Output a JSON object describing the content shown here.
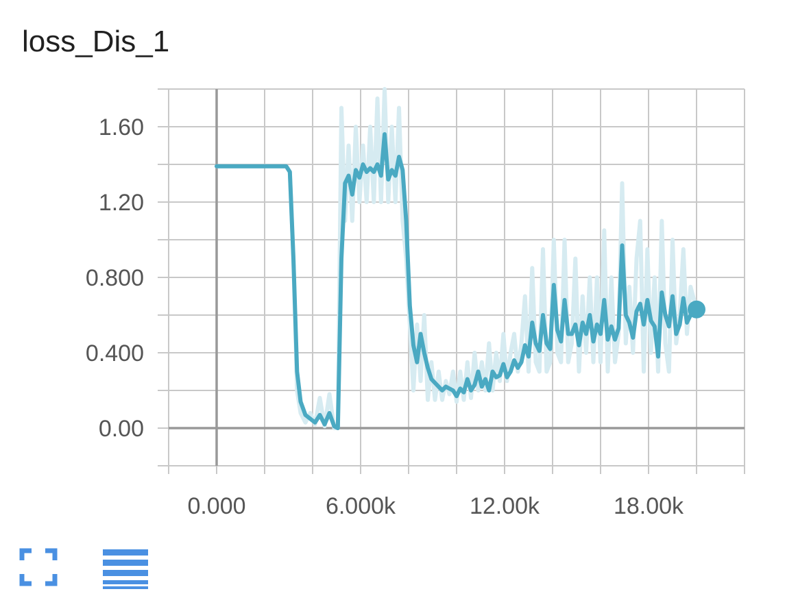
{
  "title": "loss_Dis_1",
  "toolbar": {
    "fullscreen_icon": "expand-fullscreen-icon",
    "data_icon": "menu-lines-icon",
    "accent_color": "#4a90e2"
  },
  "chart_data": {
    "type": "line",
    "title": "loss_Dis_1",
    "xlabel": "",
    "ylabel": "",
    "xlim": [
      -2000,
      22000
    ],
    "ylim": [
      -0.2,
      1.8
    ],
    "x_ticks": [
      0,
      6000,
      12000,
      18000
    ],
    "x_tick_labels": [
      "0.000",
      "6.000k",
      "12.00k",
      "18.00k"
    ],
    "y_ticks": [
      0,
      0.4,
      0.8,
      1.2,
      1.6
    ],
    "y_tick_labels": [
      "0.00",
      "0.400",
      "0.800",
      "1.20",
      "1.60"
    ],
    "grid": true,
    "colors": {
      "smoothed": "#4aa9c2",
      "raw": "#d6ebf1",
      "grid": "#c8c8c8",
      "axis": "#999999"
    },
    "series": [
      {
        "role": "smoothed",
        "x": [
          0,
          1000,
          2000,
          2900,
          3050,
          3200,
          3350,
          3500,
          3700,
          3900,
          4100,
          4300,
          4500,
          4700,
          4900,
          5050,
          5200,
          5350,
          5500,
          5650,
          5800,
          5950,
          6100,
          6250,
          6400,
          6550,
          6700,
          6850,
          7000,
          7150,
          7300,
          7450,
          7600,
          7750,
          7900,
          8050,
          8200,
          8350,
          8500,
          8650,
          8800,
          8950,
          9100,
          9250,
          9400,
          9550,
          9700,
          9850,
          10000,
          10150,
          10300,
          10450,
          10600,
          10750,
          10900,
          11050,
          11200,
          11350,
          11500,
          11650,
          11800,
          11950,
          12100,
          12250,
          12400,
          12550,
          12700,
          12850,
          13000,
          13150,
          13300,
          13450,
          13600,
          13750,
          13900,
          14050,
          14200,
          14350,
          14500,
          14650,
          14800,
          14950,
          15100,
          15250,
          15400,
          15550,
          15700,
          15850,
          16000,
          16150,
          16300,
          16450,
          16600,
          16750,
          16900,
          17050,
          17200,
          17350,
          17500,
          17650,
          17800,
          17950,
          18100,
          18250,
          18400,
          18550,
          18700,
          18850,
          19000,
          19150,
          19300,
          19450,
          19600,
          19750,
          20000
        ],
        "y": [
          1.39,
          1.39,
          1.39,
          1.39,
          1.36,
          0.9,
          0.3,
          0.14,
          0.07,
          0.05,
          0.03,
          0.07,
          0.02,
          0.08,
          0.01,
          0.0,
          0.9,
          1.3,
          1.34,
          1.24,
          1.37,
          1.33,
          1.4,
          1.36,
          1.38,
          1.36,
          1.4,
          1.34,
          1.56,
          1.32,
          1.37,
          1.34,
          1.44,
          1.37,
          1.1,
          0.65,
          0.44,
          0.35,
          0.5,
          0.4,
          0.32,
          0.26,
          0.24,
          0.22,
          0.2,
          0.22,
          0.21,
          0.2,
          0.17,
          0.21,
          0.19,
          0.26,
          0.2,
          0.23,
          0.3,
          0.22,
          0.26,
          0.2,
          0.3,
          0.27,
          0.28,
          0.34,
          0.27,
          0.3,
          0.36,
          0.32,
          0.35,
          0.44,
          0.38,
          0.56,
          0.45,
          0.41,
          0.6,
          0.45,
          0.42,
          0.76,
          0.52,
          0.46,
          0.68,
          0.5,
          0.5,
          0.55,
          0.44,
          0.56,
          0.5,
          0.6,
          0.46,
          0.55,
          0.5,
          0.68,
          0.47,
          0.54,
          0.47,
          0.53,
          0.97,
          0.6,
          0.56,
          0.48,
          0.62,
          0.66,
          0.55,
          0.68,
          0.57,
          0.54,
          0.38,
          0.72,
          0.6,
          0.54,
          0.7,
          0.5,
          0.55,
          0.69,
          0.56,
          0.6,
          0.63
        ]
      },
      {
        "role": "raw",
        "x": [
          0,
          1000,
          2000,
          2900,
          3050,
          3200,
          3350,
          3500,
          3700,
          3900,
          4100,
          4300,
          4500,
          4700,
          4900,
          5050,
          5200,
          5350,
          5500,
          5650,
          5800,
          5950,
          6100,
          6250,
          6400,
          6550,
          6700,
          6850,
          7000,
          7150,
          7300,
          7450,
          7600,
          7750,
          7900,
          8050,
          8200,
          8350,
          8500,
          8650,
          8800,
          8950,
          9100,
          9250,
          9400,
          9550,
          9700,
          9850,
          10000,
          10150,
          10300,
          10450,
          10600,
          10750,
          10900,
          11050,
          11200,
          11350,
          11500,
          11650,
          11800,
          11950,
          12100,
          12250,
          12400,
          12550,
          12700,
          12850,
          13000,
          13150,
          13300,
          13450,
          13600,
          13750,
          13900,
          14050,
          14200,
          14350,
          14500,
          14650,
          14800,
          14950,
          15100,
          15250,
          15400,
          15550,
          15700,
          15850,
          16000,
          16150,
          16300,
          16450,
          16600,
          16750,
          16900,
          17050,
          17200,
          17350,
          17500,
          17650,
          17800,
          17950,
          18100,
          18250,
          18400,
          18550,
          18700,
          18850,
          19000,
          19150,
          19300,
          19450,
          19600,
          19750,
          20000
        ],
        "y": [
          1.39,
          1.39,
          1.39,
          1.39,
          1.36,
          0.9,
          0.2,
          0.08,
          0.03,
          0.08,
          0.02,
          0.16,
          0.01,
          0.18,
          0.0,
          0.0,
          1.7,
          1.1,
          1.5,
          1.1,
          1.6,
          1.2,
          1.5,
          1.2,
          1.6,
          1.2,
          1.75,
          1.2,
          1.8,
          1.2,
          1.6,
          1.2,
          1.7,
          1.1,
          0.9,
          0.55,
          0.2,
          0.55,
          0.25,
          0.6,
          0.15,
          0.35,
          0.15,
          0.3,
          0.15,
          0.25,
          0.18,
          0.3,
          0.14,
          0.3,
          0.15,
          0.35,
          0.16,
          0.4,
          0.2,
          0.35,
          0.2,
          0.45,
          0.2,
          0.4,
          0.25,
          0.5,
          0.25,
          0.4,
          0.5,
          0.3,
          0.45,
          0.7,
          0.3,
          0.85,
          0.35,
          0.3,
          0.95,
          0.3,
          0.35,
          1.0,
          0.4,
          0.35,
          1.0,
          0.35,
          0.45,
          0.9,
          0.3,
          0.7,
          0.4,
          0.8,
          0.35,
          0.8,
          0.35,
          1.05,
          0.3,
          0.8,
          0.35,
          0.5,
          1.3,
          0.45,
          0.75,
          0.4,
          0.9,
          1.1,
          0.3,
          0.95,
          0.4,
          0.8,
          0.3,
          1.1,
          0.45,
          0.3,
          1.0,
          0.45,
          0.6,
          0.95,
          0.5,
          0.75,
          0.63
        ]
      }
    ]
  }
}
